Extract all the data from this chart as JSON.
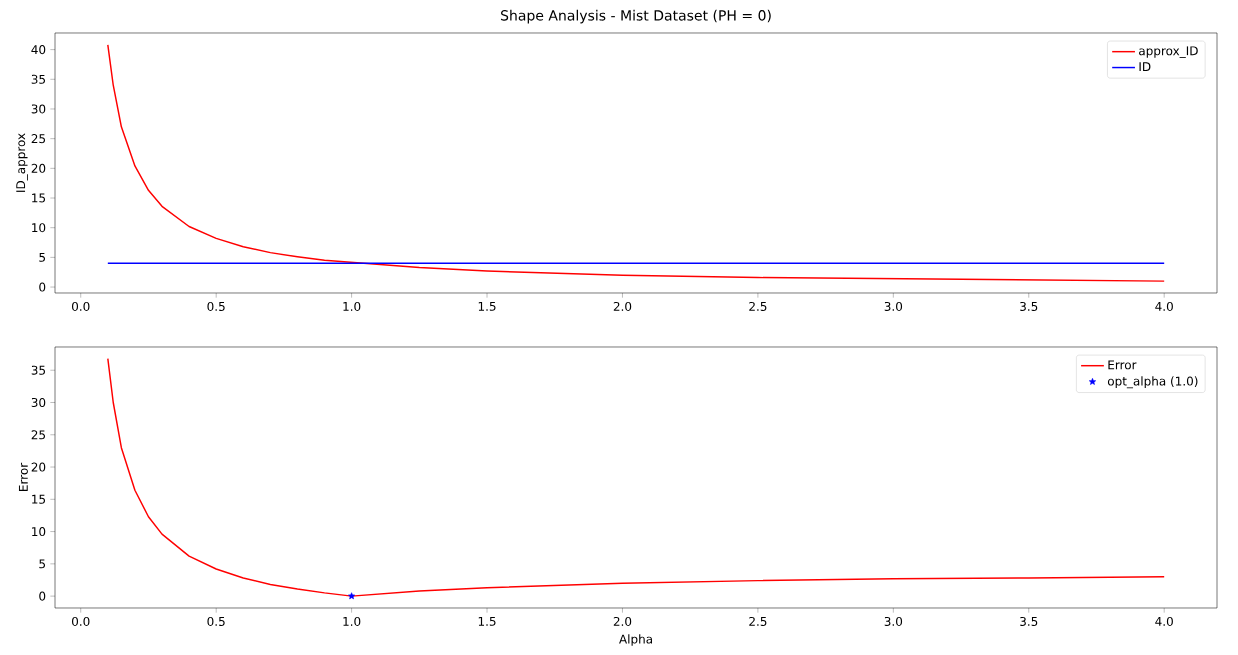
{
  "chart_data": [
    {
      "type": "line",
      "title": "Shape Analysis - Mist Dataset (PH = 0)",
      "ylabel": "ID_approx",
      "xlim": [
        -0.095,
        4.195
      ],
      "ylim": [
        -1.0,
        42.8
      ],
      "xticks": [
        {
          "value": 0,
          "label": "0.0"
        },
        0.5,
        {
          "value": 1,
          "label": "1.0"
        },
        1.5,
        {
          "value": 2,
          "label": "2.0"
        },
        2.5,
        {
          "value": 3,
          "label": "3.0"
        },
        3.5,
        {
          "value": 4,
          "label": "4.0"
        }
      ],
      "yticks": [
        0,
        5,
        10,
        15,
        20,
        25,
        30,
        35,
        40
      ],
      "grid": false,
      "legend": "top right",
      "series": [
        {
          "name": "approx_ID",
          "color": "#ff0000",
          "x": [
            0.1,
            0.12,
            0.15,
            0.2,
            0.25,
            0.3,
            0.4,
            0.5,
            0.6,
            0.7,
            0.8,
            0.9,
            1.0,
            1.25,
            1.5,
            2.0,
            2.5,
            3.0,
            3.5,
            4.0
          ],
          "values": [
            40.8,
            34,
            27,
            20.4,
            16.3,
            13.6,
            10.2,
            8.2,
            6.8,
            5.8,
            5.1,
            4.5,
            null,
            3.3,
            2.7,
            2.0,
            1.6,
            1.4,
            1.2,
            1.0
          ]
        },
        {
          "name": "ID",
          "color": "#0000ff",
          "x": [
            0.1,
            4.0
          ],
          "values": [
            4.0,
            4.0
          ]
        }
      ]
    },
    {
      "type": "line",
      "xlabel": "Alpha",
      "ylabel": "Error",
      "xlim": [
        -0.095,
        4.195
      ],
      "ylim": [
        -1.84,
        38.6
      ],
      "xticks": [
        {
          "value": 0,
          "label": "0.0"
        },
        0.5,
        {
          "value": 1,
          "label": "1.0"
        },
        1.5,
        {
          "value": 2,
          "label": "2.0"
        },
        2.5,
        {
          "value": 3,
          "label": "3.0"
        },
        3.5,
        {
          "value": 4,
          "label": "4.0"
        }
      ],
      "yticks": [
        0,
        5,
        10,
        15,
        20,
        25,
        30,
        35
      ],
      "grid": false,
      "legend": "top right",
      "series": [
        {
          "name": "Error",
          "color": "#ff0000",
          "x": [
            0.1,
            0.12,
            0.15,
            0.2,
            0.25,
            0.3,
            0.4,
            0.5,
            0.6,
            0.7,
            0.8,
            0.9,
            1.0,
            1.25,
            1.5,
            2.0,
            2.5,
            3.0,
            3.5,
            4.0
          ],
          "values": [
            36.8,
            30,
            23,
            16.4,
            12.3,
            9.6,
            6.2,
            4.2,
            2.8,
            1.8,
            1.1,
            0.5,
            0,
            0.8,
            1.3,
            2.0,
            2.4,
            2.7,
            2.8,
            3.0
          ]
        },
        {
          "name": "opt_alpha (1.0)",
          "type": "scatter",
          "marker": "star",
          "color": "#0000ff",
          "x": [
            1.0
          ],
          "values": [
            0
          ]
        }
      ]
    }
  ]
}
